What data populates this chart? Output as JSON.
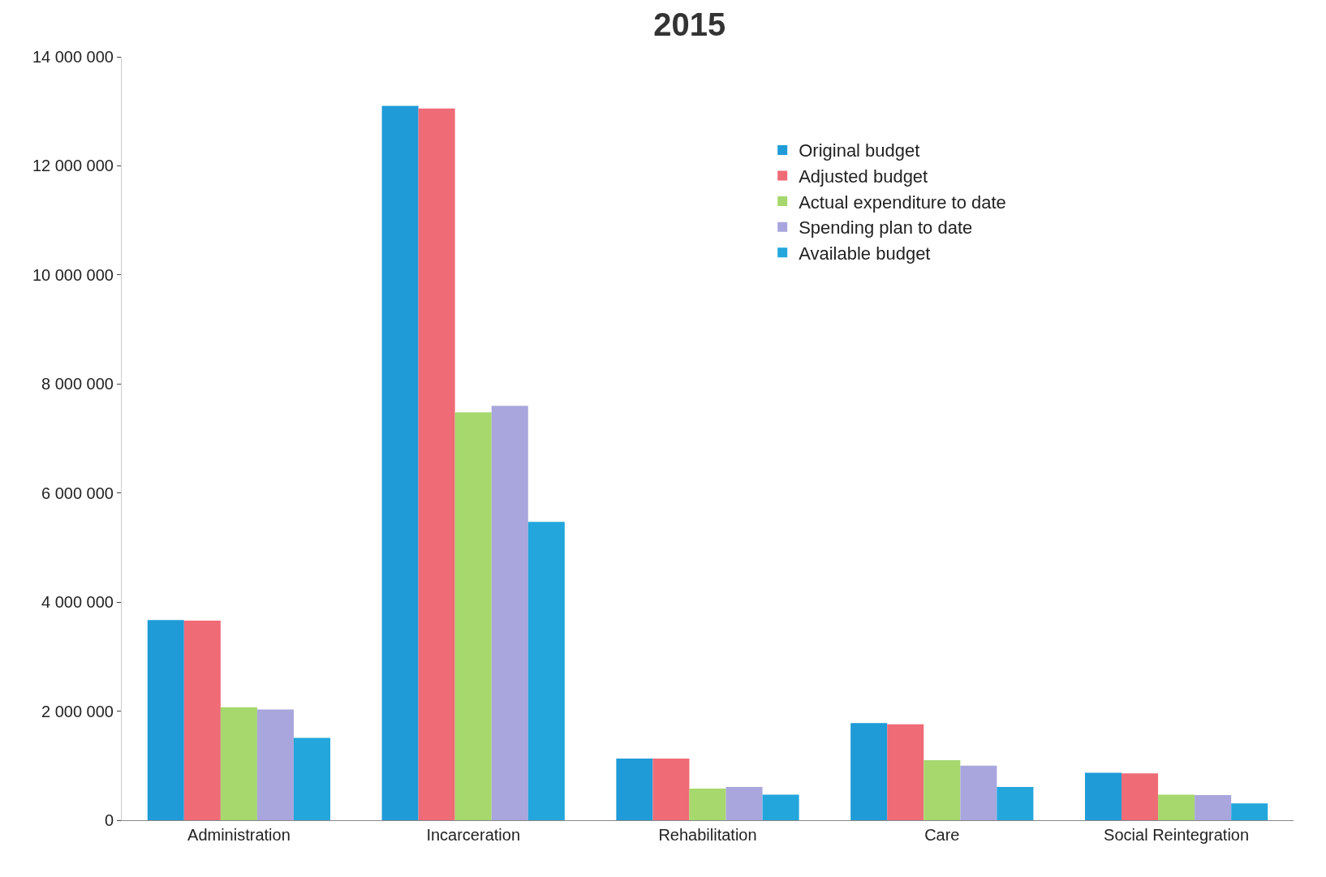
{
  "chart_data": {
    "type": "bar",
    "title": "2015",
    "categories": [
      "Administration",
      "Incarceration",
      "Rehabilitation",
      "Care",
      "Social Reintegration"
    ],
    "series": [
      {
        "name": "Original budget",
        "color": "#1f9bd7",
        "values": [
          3670000,
          13100000,
          1130000,
          1780000,
          870000
        ]
      },
      {
        "name": "Adjusted budget",
        "color": "#ef6b76",
        "values": [
          3660000,
          13050000,
          1130000,
          1760000,
          860000
        ]
      },
      {
        "name": "Actual expenditure to date",
        "color": "#a6d86e",
        "values": [
          2070000,
          7480000,
          580000,
          1100000,
          470000
        ]
      },
      {
        "name": "Spending plan to date",
        "color": "#a9a6dd",
        "values": [
          2030000,
          7600000,
          610000,
          1000000,
          460000
        ]
      },
      {
        "name": "Available budget",
        "color": "#23a6dc",
        "values": [
          1510000,
          5470000,
          470000,
          610000,
          310000
        ]
      }
    ],
    "ylim": [
      0,
      14000000
    ],
    "yticks": [
      {
        "value": 0,
        "label": "0"
      },
      {
        "value": 2000000,
        "label": "2 000 000"
      },
      {
        "value": 4000000,
        "label": "4 000 000"
      },
      {
        "value": 6000000,
        "label": "6 000 000"
      },
      {
        "value": 8000000,
        "label": "8 000 000"
      },
      {
        "value": 10000000,
        "label": "10 000 000"
      },
      {
        "value": 12000000,
        "label": "12 000 000"
      },
      {
        "value": 14000000,
        "label": "14 000 000"
      }
    ],
    "legend": "top right"
  }
}
